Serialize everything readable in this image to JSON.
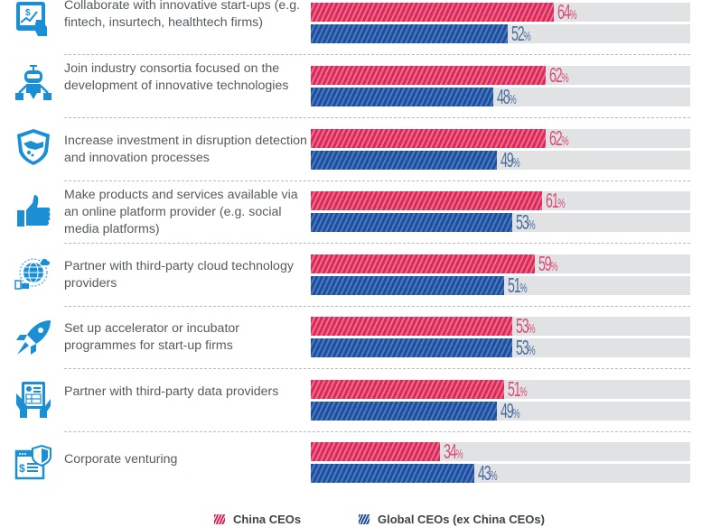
{
  "colors": {
    "china": "#d92b5a",
    "global": "#1d4f9c",
    "track": "#e1e2e4",
    "icon": "#1a8fd6"
  },
  "chart_data": {
    "type": "bar",
    "orientation": "horizontal",
    "title": "",
    "xlabel": "",
    "ylabel": "",
    "xlim": [
      0,
      100
    ],
    "unit": "%",
    "legend_position": "bottom-center",
    "categories": [
      "Collaborate with innovative start-ups (e.g. fintech, insurtech, healthtech firms)",
      "Join industry consortia focused on the development of innovative technologies",
      "Increase investment in disruption detection and innovation processes",
      "Make products and services available via an online platform provider (e.g. social media platforms)",
      "Partner with third-party cloud technology providers",
      "Set up accelerator or incubator programmes for start-up firms",
      "Partner with third-party data providers",
      "Corporate venturing"
    ],
    "series": [
      {
        "name": "China CEOs",
        "values": [
          64,
          62,
          62,
          61,
          59,
          53,
          51,
          34
        ]
      },
      {
        "name": "Global CEOs (ex China CEOs)",
        "values": [
          52,
          48,
          49,
          53,
          51,
          53,
          49,
          43
        ]
      }
    ]
  },
  "rows": [
    {
      "icon": "tablet-growth-chart-icon",
      "label": "Collaborate with innovative start-ups (e.g. fintech, insurtech, healthtech firms)"
    },
    {
      "icon": "robot-icon",
      "label": "Join industry consortia focused on the development of innovative technologies"
    },
    {
      "icon": "shield-handshake-icon",
      "label": "Increase investment in disruption detection and innovation processes"
    },
    {
      "icon": "thumbs-up-icon",
      "label": "Make products and services available via an online platform provider (e.g. social media platforms)"
    },
    {
      "icon": "cloud-globe-icon",
      "label": "Partner with third-party cloud technology providers"
    },
    {
      "icon": "rocket-icon",
      "label": "Set up accelerator or incubator programmes for start-up firms"
    },
    {
      "icon": "hands-tablet-data-icon",
      "label": "Partner with third-party data providers"
    },
    {
      "icon": "browser-dollar-shield-icon",
      "label": "Corporate venturing"
    }
  ],
  "legend": {
    "china": "China CEOs",
    "global": "Global CEOs (ex China CEOs)"
  }
}
